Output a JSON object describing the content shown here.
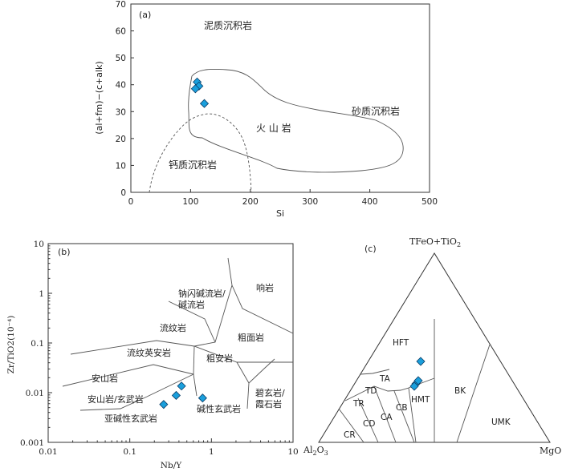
{
  "chart_data": [
    {
      "panel": "(a)",
      "type": "scatter",
      "xlabel": "Si",
      "ylabel": "(al+fm)−(c+alk)",
      "xlim": [
        0,
        500
      ],
      "ylim": [
        0,
        70
      ],
      "xticks": [
        0,
        100,
        200,
        300,
        400,
        500
      ],
      "yticks": [
        0,
        10,
        20,
        30,
        40,
        50,
        60,
        70
      ],
      "field_labels": [
        "泥质沉积岩",
        "砂质沉积岩",
        "火 山 岩",
        "钙质沉积岩"
      ],
      "points": [
        {
          "x": 111,
          "y": 41
        },
        {
          "x": 114,
          "y": 39.5
        },
        {
          "x": 108,
          "y": 38.5
        },
        {
          "x": 123,
          "y": 33
        }
      ]
    },
    {
      "panel": "(b)",
      "type": "scatter",
      "xlabel": "Nb/Y",
      "ylabel": "Zr/TiO2(10⁻⁴)",
      "xscale": "log",
      "yscale": "log",
      "xlim": [
        0.01,
        10
      ],
      "ylim": [
        0.001,
        10
      ],
      "xticks": [
        "0.01",
        "0.1",
        "1",
        "10"
      ],
      "yticks": [
        "0.001",
        "0.01",
        "0.1",
        "1",
        "10"
      ],
      "field_labels": [
        "钠闪碱流岩/",
        "碱流岩",
        "响岩",
        "流纹岩",
        "粗面岩",
        "流纹英安岩",
        "粗安岩",
        "安山岩",
        "安山岩/玄武岩",
        "碧玄岩/",
        "霞石岩",
        "碱性玄武岩",
        "亚碱性玄武岩"
      ],
      "points": [
        {
          "x": 0.26,
          "y": 0.0058
        },
        {
          "x": 0.37,
          "y": 0.0088
        },
        {
          "x": 0.43,
          "y": 0.0136
        },
        {
          "x": 0.78,
          "y": 0.0078
        }
      ]
    },
    {
      "panel": "(c)",
      "type": "ternary",
      "apex_top": "TFeO+TiO2",
      "apex_left": "Al2O3",
      "apex_right": "MgO",
      "field_labels": [
        "HFT",
        "TA",
        "TD",
        "TR",
        "CD",
        "CA",
        "CB",
        "HMT",
        "BK",
        "UMK",
        "CR"
      ],
      "points": [
        {
          "x": 524,
          "y": 451
        },
        {
          "x": 518,
          "y": 479
        },
        {
          "x": 521,
          "y": 475
        },
        {
          "x": 516,
          "y": 482
        }
      ]
    }
  ]
}
